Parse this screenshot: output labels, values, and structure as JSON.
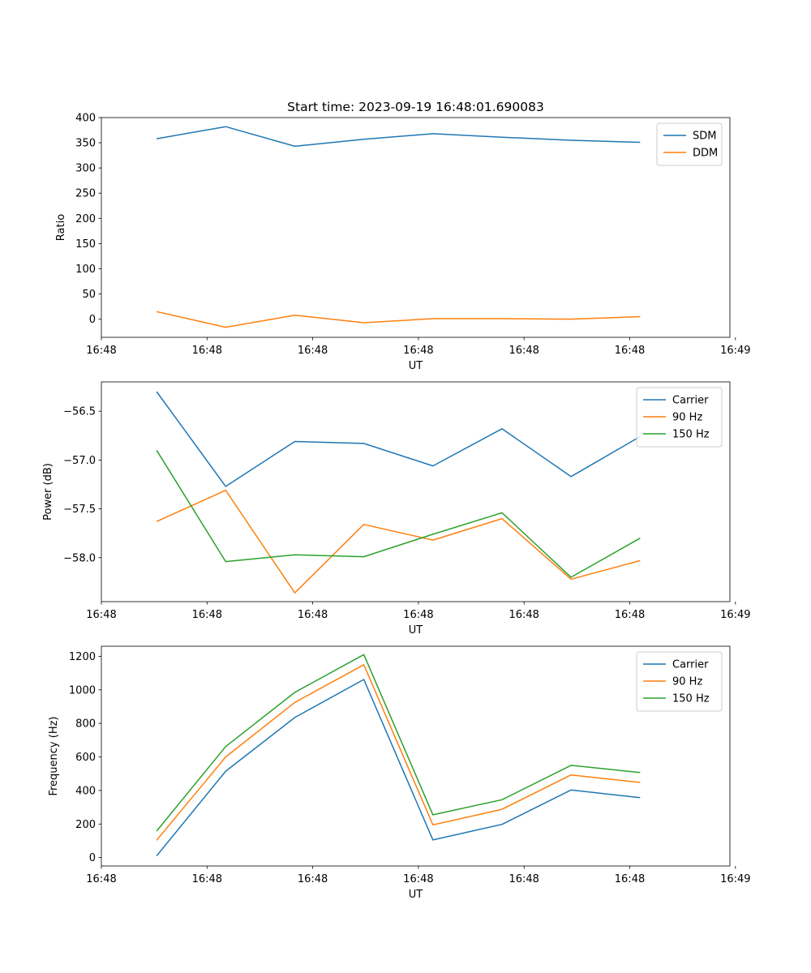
{
  "figure": {
    "title": "Start time: 2023-09-19 16:48:01.690083"
  },
  "chart_data": [
    {
      "type": "line",
      "title": "Start time: 2023-09-19 16:48:01.690083",
      "xlabel": "UT",
      "ylabel": "Ratio",
      "x": [
        1,
        2,
        3,
        4,
        5,
        6,
        7,
        8
      ],
      "xlim": [
        0.2,
        9.3
      ],
      "x_ticks": [
        0.2,
        1.73,
        3.26,
        4.79,
        6.32,
        7.85,
        9.38
      ],
      "x_tick_labels": [
        "16:48",
        "16:48",
        "16:48",
        "16:48",
        "16:48",
        "16:48",
        "16:49"
      ],
      "ylim": [
        -36,
        400
      ],
      "y_ticks": [
        0,
        50,
        100,
        150,
        200,
        250,
        300,
        350,
        400
      ],
      "y_tick_labels": [
        "0",
        "50",
        "100",
        "150",
        "200",
        "250",
        "300",
        "350",
        "400"
      ],
      "legend_position": "top-right",
      "series": [
        {
          "name": "SDM",
          "color": "#1f77b4",
          "values": [
            358,
            382,
            343,
            357,
            368,
            361,
            355,
            351
          ]
        },
        {
          "name": "DDM",
          "color": "#ff7f0e",
          "values": [
            15,
            -16,
            8,
            -7,
            1,
            1,
            0,
            5
          ]
        }
      ]
    },
    {
      "type": "line",
      "xlabel": "UT",
      "ylabel": "Power (dB)",
      "x": [
        1,
        2,
        3,
        4,
        5,
        6,
        7,
        8
      ],
      "xlim": [
        0.2,
        9.3
      ],
      "x_ticks": [
        0.2,
        1.73,
        3.26,
        4.79,
        6.32,
        7.85,
        9.38
      ],
      "x_tick_labels": [
        "16:48",
        "16:48",
        "16:48",
        "16:48",
        "16:48",
        "16:48",
        "16:49"
      ],
      "ylim": [
        -58.45,
        -56.2
      ],
      "y_ticks": [
        -58.0,
        -57.5,
        -57.0,
        -56.5
      ],
      "y_tick_labels": [
        "−58.0",
        "−57.5",
        "−57.0",
        "−56.5"
      ],
      "legend_position": "top-right",
      "series": [
        {
          "name": "Carrier",
          "color": "#1f77b4",
          "values": [
            -56.3,
            -57.27,
            -56.81,
            -56.83,
            -57.06,
            -56.68,
            -57.17,
            -56.76
          ]
        },
        {
          "name": "90 Hz",
          "color": "#ff7f0e",
          "values": [
            -57.63,
            -57.31,
            -58.36,
            -57.66,
            -57.82,
            -57.6,
            -58.22,
            -58.03
          ]
        },
        {
          "name": "150 Hz",
          "color": "#2ca02c",
          "values": [
            -56.9,
            -58.04,
            -57.97,
            -57.99,
            -57.76,
            -57.54,
            -58.2,
            -57.8
          ]
        }
      ]
    },
    {
      "type": "line",
      "xlabel": "UT",
      "ylabel": "Frequency (Hz)",
      "x": [
        1,
        2,
        3,
        4,
        5,
        6,
        7,
        8
      ],
      "xlim": [
        0.2,
        9.3
      ],
      "x_ticks": [
        0.2,
        1.73,
        3.26,
        4.79,
        6.32,
        7.85,
        9.38
      ],
      "x_tick_labels": [
        "16:48",
        "16:48",
        "16:48",
        "16:48",
        "16:48",
        "16:48",
        "16:49"
      ],
      "ylim": [
        -50,
        1260
      ],
      "y_ticks": [
        0,
        200,
        400,
        600,
        800,
        1000,
        1200
      ],
      "y_tick_labels": [
        "0",
        "200",
        "400",
        "600",
        "800",
        "1000",
        "1200"
      ],
      "legend_position": "top-right",
      "series": [
        {
          "name": "Carrier",
          "color": "#1f77b4",
          "values": [
            10,
            515,
            835,
            1062,
            105,
            198,
            403,
            357
          ]
        },
        {
          "name": "90 Hz",
          "color": "#ff7f0e",
          "values": [
            103,
            600,
            925,
            1150,
            195,
            288,
            493,
            448
          ]
        },
        {
          "name": "150 Hz",
          "color": "#2ca02c",
          "values": [
            158,
            662,
            985,
            1210,
            255,
            345,
            550,
            507
          ]
        }
      ]
    }
  ]
}
